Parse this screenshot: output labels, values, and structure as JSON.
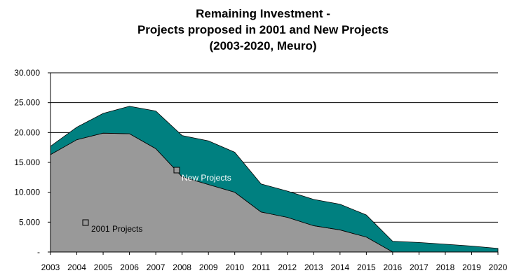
{
  "chart_data": {
    "type": "area",
    "stacked": true,
    "title_lines": [
      "Remaining Investment -",
      "Projects proposed in 2001 and New Projects",
      "(2003-2020, Meuro)"
    ],
    "xlabel": "",
    "ylabel": "",
    "ylim": [
      0,
      30000
    ],
    "y_ticks": [
      "-",
      "5.000",
      "10.000",
      "15.000",
      "20.000",
      "25.000",
      "30.000"
    ],
    "y_tick_values": [
      0,
      5000,
      10000,
      15000,
      20000,
      25000,
      30000
    ],
    "x_ticks": [
      "2003",
      "2004",
      "2005",
      "2006",
      "2007",
      "2008",
      "2009",
      "2010",
      "2011",
      "2012",
      "2013",
      "2014",
      "2015",
      "2016",
      "2017",
      "2018",
      "2019",
      "2020"
    ],
    "x_values": [
      2003,
      2004,
      2005,
      2006,
      2007,
      2008,
      2009,
      2010,
      2011,
      2012,
      2013,
      2014,
      2015,
      2016,
      2017,
      2018,
      2019,
      2020
    ],
    "grid": true,
    "series": [
      {
        "name": "2001 Projects",
        "color": "#999999",
        "values": [
          16300,
          18800,
          19900,
          19800,
          17300,
          12600,
          11300,
          10000,
          6700,
          5800,
          4400,
          3700,
          2500,
          0,
          0,
          0,
          0,
          0
        ]
      },
      {
        "name": "New Projects",
        "color": "#008080",
        "values": [
          1400,
          2100,
          3300,
          4600,
          6300,
          6900,
          7300,
          6700,
          4700,
          4400,
          4400,
          4300,
          3700,
          1800,
          1600,
          1300,
          1000,
          600
        ]
      }
    ]
  }
}
